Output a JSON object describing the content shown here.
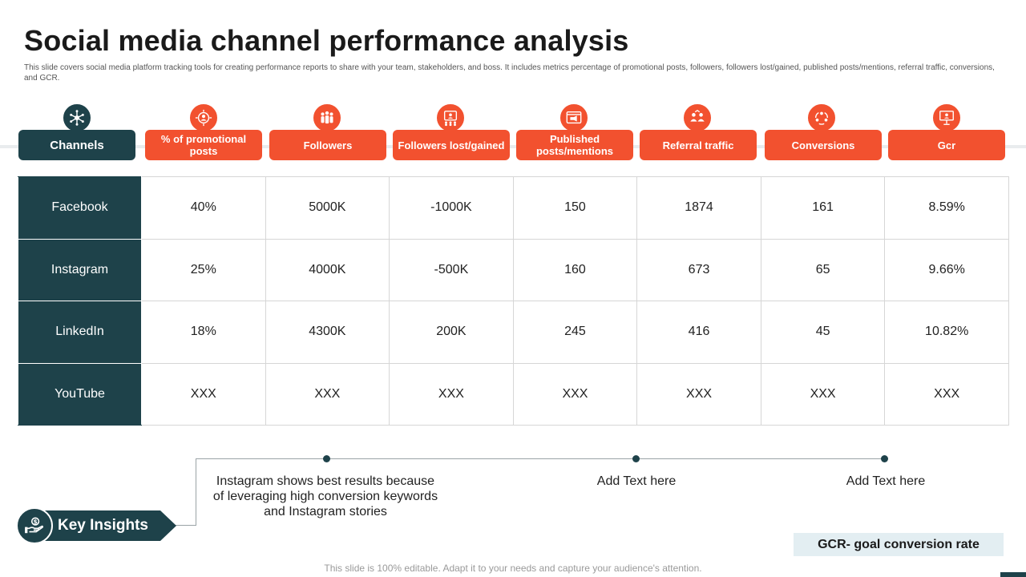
{
  "title": "Social media channel performance analysis",
  "subtitle": "This slide covers social media platform tracking tools for creating performance reports to share with your team, stakeholders, and boss. It includes metrics percentage of promotional posts, followers, followers lost/gained, published posts/mentions, referral traffic, conversions, and GCR.",
  "colors": {
    "accent": "#f2512f",
    "dark": "#1e424a",
    "light_box": "#e3eef2"
  },
  "columns": [
    {
      "label": "Channels",
      "icon": "network-hub-icon"
    },
    {
      "label": "% of promotional posts",
      "icon": "target-user-icon"
    },
    {
      "label": "Followers",
      "icon": "people-group-icon"
    },
    {
      "label": "Followers lost/gained",
      "icon": "users-screen-icon"
    },
    {
      "label": "Published posts/mentions",
      "icon": "browser-megaphone-icon"
    },
    {
      "label": "Referral traffic",
      "icon": "referral-people-icon"
    },
    {
      "label": "Conversions",
      "icon": "conversion-cycle-icon"
    },
    {
      "label": "Gcr",
      "icon": "presentation-board-icon"
    }
  ],
  "rows": [
    {
      "channel": "Facebook",
      "values": [
        "40%",
        "5000K",
        "-1000K",
        "150",
        "1874",
        "161",
        "8.59%"
      ]
    },
    {
      "channel": "Instagram",
      "values": [
        "25%",
        "4000K",
        "-500K",
        "160",
        "673",
        "65",
        "9.66%"
      ]
    },
    {
      "channel": "LinkedIn",
      "values": [
        "18%",
        "4300K",
        "200K",
        "245",
        "416",
        "45",
        "10.82%"
      ]
    },
    {
      "channel": "YouTube",
      "values": [
        "XXX",
        "XXX",
        "XXX",
        "XXX",
        "XXX",
        "XXX",
        "XXX"
      ]
    }
  ],
  "insights": {
    "label": "Key Insights",
    "icon": "hand-dollar-icon",
    "notes": [
      "Instagram shows best results because of leveraging high conversion keywords and Instagram stories",
      "Add Text here",
      "Add Text here"
    ]
  },
  "gcr_note": "GCR- goal conversion rate",
  "footer": "This slide is 100% editable. Adapt it to your needs and capture your audience's attention."
}
